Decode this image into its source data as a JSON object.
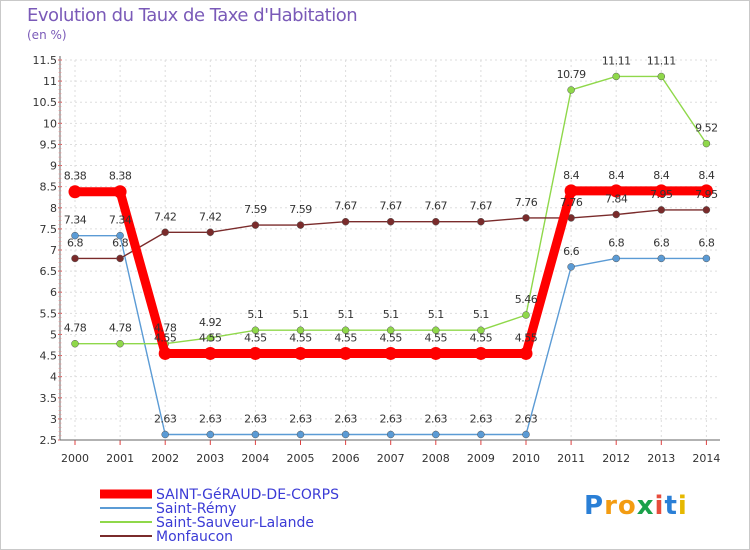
{
  "header": {
    "title": "Evolution du Taux de Taxe d'Habitation",
    "unit": "(en %)"
  },
  "brand": {
    "letters": [
      "P",
      "r",
      "o",
      "x",
      "i",
      "t",
      "i"
    ],
    "colors": [
      "#2a7fd6",
      "#f39c12",
      "#f39c12",
      "#1aa14a",
      "#e74c3c",
      "#2a7fd6",
      "#e6b800"
    ]
  },
  "chart_data": {
    "type": "line",
    "title": "Evolution du Taux de Taxe d'Habitation",
    "ylabel": "(en %)",
    "ylim": [
      2.5,
      11.5
    ],
    "yticks": [
      "2.5",
      "3",
      "3.5",
      "4",
      "4.5",
      "5",
      "5.5",
      "6",
      "6.5",
      "7",
      "7.5",
      "8",
      "8.5",
      "9",
      "9.5",
      "10",
      "10.5",
      "11",
      "11.5"
    ],
    "x": [
      "2000",
      "2001",
      "2002",
      "2003",
      "2004",
      "2005",
      "2006",
      "2007",
      "2008",
      "2009",
      "2010",
      "2011",
      "2012",
      "2013",
      "2014"
    ],
    "grid": true,
    "legend_position": "bottom-left",
    "series": [
      {
        "name": "SAINT-GéRAUD-DE-CORPS",
        "color": "#ff0000",
        "values": [
          8.38,
          8.38,
          4.55,
          4.55,
          4.55,
          4.55,
          4.55,
          4.55,
          4.55,
          4.55,
          4.55,
          8.4,
          8.4,
          8.4,
          8.4
        ],
        "labels": [
          "8.38",
          "8.38",
          "4.55",
          "4.55",
          "4.55",
          "4.55",
          "4.55",
          "4.55",
          "4.55",
          "4.55",
          "4.55",
          "8.4",
          "8.4",
          "8.4",
          "8.4"
        ]
      },
      {
        "name": "Saint-Rémy",
        "color": "#5b9bd5",
        "values": [
          7.34,
          7.34,
          2.63,
          2.63,
          2.63,
          2.63,
          2.63,
          2.63,
          2.63,
          2.63,
          2.63,
          6.6,
          6.8,
          6.8,
          6.8
        ],
        "labels": [
          "7.34",
          "7.34",
          "2.63",
          "2.63",
          "2.63",
          "2.63",
          "2.63",
          "2.63",
          "2.63",
          "2.63",
          "2.63",
          "6.6",
          "6.8",
          "6.8",
          "6.8"
        ]
      },
      {
        "name": "Saint-Sauveur-Lalande",
        "color": "#8fd84a",
        "values": [
          4.78,
          4.78,
          4.78,
          4.92,
          5.1,
          5.1,
          5.1,
          5.1,
          5.1,
          5.1,
          5.46,
          10.79,
          11.11,
          11.11,
          9.52
        ],
        "labels": [
          "4.78",
          "4.78",
          "4.78",
          "4.92",
          "5.1",
          "5.1",
          "5.1",
          "5.1",
          "5.1",
          "5.1",
          "5.46",
          "10.79",
          "11.11",
          "11.11",
          "9.52"
        ]
      },
      {
        "name": "Monfaucon",
        "color": "#7a2b2b",
        "values": [
          6.8,
          6.8,
          7.42,
          7.42,
          7.59,
          7.59,
          7.67,
          7.67,
          7.67,
          7.67,
          7.76,
          7.76,
          7.84,
          7.95,
          7.95
        ],
        "labels": [
          "6.8",
          "6.8",
          "7.42",
          "7.42",
          "7.59",
          "7.59",
          "7.67",
          "7.67",
          "7.67",
          "7.67",
          "7.76",
          "7.76",
          "7.84",
          "7.95",
          "7.95"
        ]
      }
    ]
  }
}
